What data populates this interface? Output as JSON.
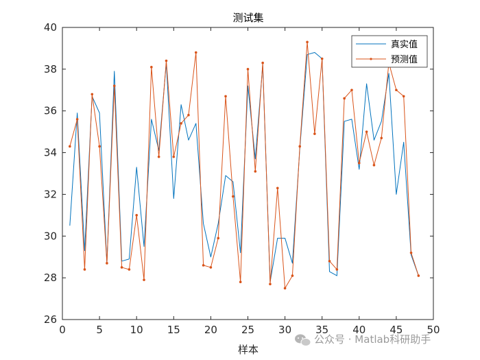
{
  "chart_data": {
    "type": "line",
    "title": "测试集",
    "xlabel": "样本",
    "ylabel": "",
    "xlim": [
      0,
      50
    ],
    "ylim": [
      26,
      40
    ],
    "xticks": [
      0,
      5,
      10,
      15,
      20,
      25,
      30,
      35,
      40,
      45,
      50
    ],
    "yticks": [
      26,
      28,
      30,
      32,
      34,
      36,
      38,
      40
    ],
    "grid": false,
    "legend_position": "top-right",
    "x": [
      1,
      2,
      3,
      4,
      5,
      6,
      7,
      8,
      9,
      10,
      11,
      12,
      13,
      14,
      15,
      16,
      17,
      18,
      19,
      20,
      21,
      22,
      23,
      24,
      25,
      26,
      27,
      28,
      29,
      30,
      31,
      32,
      33,
      34,
      35,
      36,
      37,
      38,
      39,
      40,
      41,
      42,
      43,
      44,
      45,
      46,
      47,
      48
    ],
    "series": [
      {
        "name": "真实值",
        "color": "#0072BD",
        "marker": "none",
        "values": [
          30.5,
          35.9,
          29.3,
          36.7,
          35.9,
          28.7,
          37.9,
          28.8,
          28.9,
          33.3,
          29.5,
          35.6,
          34.1,
          38.3,
          31.8,
          36.3,
          34.6,
          35.4,
          30.6,
          29.0,
          30.6,
          32.9,
          32.6,
          29.2,
          37.2,
          33.7,
          38.2,
          27.8,
          29.9,
          29.9,
          28.7,
          34.2,
          38.7,
          38.8,
          38.5,
          28.3,
          28.1,
          35.5,
          35.6,
          33.2,
          37.3,
          34.6,
          35.5,
          37.8,
          32.0,
          34.5,
          29.1,
          28.1
        ]
      },
      {
        "name": "预测值",
        "color": "#D95319",
        "marker": "dot",
        "values": [
          34.3,
          35.6,
          28.4,
          36.8,
          34.3,
          28.7,
          37.2,
          28.5,
          28.4,
          31.0,
          27.9,
          38.1,
          33.8,
          38.4,
          33.8,
          35.4,
          35.8,
          38.8,
          28.6,
          28.5,
          29.9,
          36.7,
          31.9,
          27.8,
          38.0,
          33.1,
          38.3,
          27.7,
          32.3,
          27.5,
          28.1,
          34.3,
          39.3,
          34.9,
          38.5,
          28.8,
          28.4,
          36.6,
          37.0,
          33.5,
          35.0,
          33.4,
          34.7,
          38.3,
          37.0,
          36.7,
          29.2,
          28.1
        ]
      }
    ]
  },
  "watermark": {
    "icon": "wechat-icon",
    "text": "公众号 · Matlab科研助手"
  }
}
